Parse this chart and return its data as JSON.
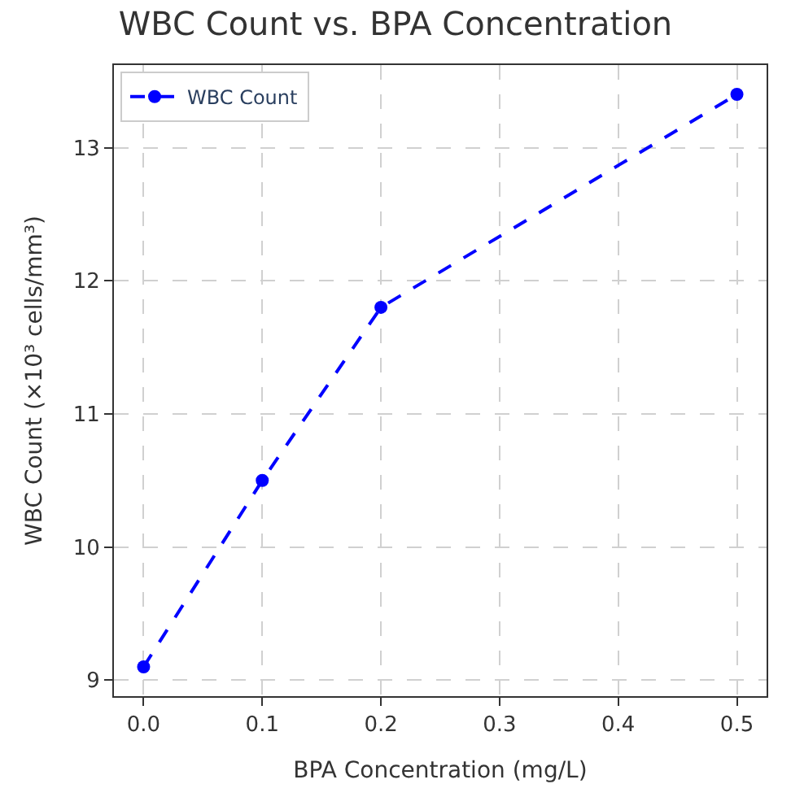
{
  "chart_data": {
    "type": "line",
    "title": "WBC Count vs. BPA Concentration",
    "xlabel": "BPA Concentration (mg/L)",
    "ylabel": "WBC Count (×10³ cells/mm³)",
    "x": [
      0.0,
      0.1,
      0.2,
      0.5
    ],
    "series": [
      {
        "name": "WBC Count",
        "color": "#0000ff",
        "values": [
          9.1,
          10.5,
          11.8,
          13.4
        ]
      }
    ],
    "xlim": [
      -0.025,
      0.525
    ],
    "xticks": [
      {
        "value": 0,
        "label": "0.0"
      },
      {
        "value": 0.1,
        "label": "0.1"
      },
      {
        "value": 0.2,
        "label": "0.2"
      },
      {
        "value": 0.3,
        "label": "0.3"
      },
      {
        "value": 0.4,
        "label": "0.4"
      },
      {
        "value": 0.5,
        "label": "0.5"
      }
    ],
    "ylim": [
      8.88,
      13.62
    ],
    "yticks": [
      9,
      10,
      11,
      12,
      13
    ],
    "grid": true,
    "legend": "top left",
    "marker": "circle",
    "line_style": "dashed"
  }
}
